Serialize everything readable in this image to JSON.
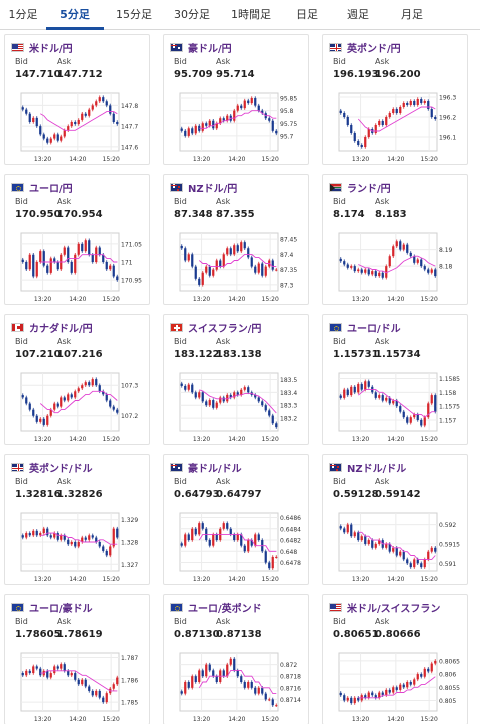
{
  "tabs": [
    {
      "label": "1分足",
      "active": false
    },
    {
      "label": "5分足",
      "active": true
    },
    {
      "label": "15分足",
      "active": false
    },
    {
      "label": "30分足",
      "active": false
    },
    {
      "label": "1時間足",
      "active": false
    },
    {
      "label": "日足",
      "active": false
    },
    {
      "label": "週足",
      "active": false
    },
    {
      "label": "月足",
      "active": false
    }
  ],
  "bid_label": "Bid",
  "ask_label": "Ask",
  "x_ticks": [
    "13:20",
    "14:20",
    "15:20"
  ],
  "colors": {
    "up": "#d7262c",
    "down": "#1a3a8f",
    "ma": "#e040d0",
    "accent": "#1a4fa0",
    "pair": "#5b2a86"
  },
  "cards": [
    {
      "pair": "米ドル/円",
      "flag": "us",
      "bid": "147.710",
      "ask": "147.712",
      "y_ticks": [
        "147.8",
        "147.7",
        "147.6"
      ],
      "ylim": [
        147.58,
        147.86
      ],
      "closes": [
        147.78,
        147.76,
        147.72,
        147.74,
        147.7,
        147.66,
        147.64,
        147.62,
        147.64,
        147.66,
        147.63,
        147.65,
        147.68,
        147.7,
        147.72,
        147.71,
        147.73,
        147.76,
        147.75,
        147.78,
        147.8,
        147.82,
        147.84,
        147.82,
        147.8,
        147.76,
        147.72,
        147.71
      ],
      "ma": [
        147.76,
        147.75,
        147.73,
        147.72,
        147.71,
        147.7,
        147.69,
        147.68,
        147.68,
        147.68,
        147.68,
        147.69,
        147.7,
        147.71,
        147.72,
        147.73,
        147.74,
        147.75,
        147.76,
        147.77,
        147.77,
        147.77,
        147.76
      ]
    },
    {
      "pair": "豪ドル/円",
      "flag": "au",
      "bid": "95.709",
      "ask": "95.714",
      "y_ticks": [
        "95.85",
        "95.8",
        "95.75",
        "95.7"
      ],
      "ylim": [
        95.64,
        95.87
      ],
      "closes": [
        95.72,
        95.7,
        95.73,
        95.71,
        95.74,
        95.72,
        95.75,
        95.74,
        95.76,
        95.73,
        95.75,
        95.77,
        95.76,
        95.78,
        95.76,
        95.8,
        95.82,
        95.81,
        95.84,
        95.83,
        95.85,
        95.82,
        95.8,
        95.79,
        95.77,
        95.76,
        95.72,
        95.71
      ],
      "ma": [
        95.73,
        95.73,
        95.73,
        95.74,
        95.74,
        95.75,
        95.75,
        95.76,
        95.76,
        95.77,
        95.77,
        95.78,
        95.78,
        95.79,
        95.79,
        95.8,
        95.8,
        95.8,
        95.79,
        95.78,
        95.78,
        95.77,
        95.77
      ]
    },
    {
      "pair": "英ポンド/円",
      "flag": "gb",
      "bid": "196.193",
      "ask": "196.200",
      "y_ticks": [
        "196.3",
        "196.2",
        "196.1"
      ],
      "ylim": [
        196.03,
        196.32
      ],
      "closes": [
        196.22,
        196.2,
        196.16,
        196.12,
        196.08,
        196.06,
        196.05,
        196.1,
        196.14,
        196.12,
        196.16,
        196.18,
        196.16,
        196.2,
        196.22,
        196.24,
        196.22,
        196.25,
        196.27,
        196.26,
        196.28,
        196.26,
        196.29,
        196.27,
        196.28,
        196.24,
        196.2,
        196.19
      ],
      "ma": [
        196.19,
        196.17,
        196.15,
        196.14,
        196.13,
        196.13,
        196.13,
        196.14,
        196.15,
        196.16,
        196.17,
        196.18,
        196.19,
        196.2,
        196.21,
        196.22,
        196.23,
        196.24,
        196.25,
        196.25,
        196.25,
        196.25,
        196.24
      ]
    },
    {
      "pair": "ユーロ/円",
      "flag": "eu",
      "bid": "170.950",
      "ask": "170.954",
      "y_ticks": [
        "171.05",
        "171",
        "170.95"
      ],
      "ylim": [
        170.92,
        171.08
      ],
      "closes": [
        171.0,
        170.98,
        171.02,
        170.96,
        171.0,
        171.03,
        170.99,
        170.97,
        171.01,
        171.0,
        170.98,
        171.02,
        171.04,
        171.0,
        170.97,
        171.02,
        171.05,
        171.03,
        171.06,
        171.02,
        171.0,
        171.04,
        171.02,
        171.0,
        170.98,
        170.99,
        170.96,
        170.95
      ],
      "ma": [
        171.0,
        171.0,
        171.0,
        171.0,
        171.0,
        171.0,
        171.0,
        171.0,
        171.01,
        171.01,
        171.01,
        171.01,
        171.02,
        171.02,
        171.02,
        171.02,
        171.02,
        171.02,
        171.02,
        171.01,
        171.01,
        171.0,
        171.0
      ]
    },
    {
      "pair": "NZドル/円",
      "flag": "nz",
      "bid": "87.348",
      "ask": "87.355",
      "y_ticks": [
        "87.45",
        "87.4",
        "87.35",
        "87.3"
      ],
      "ylim": [
        87.28,
        87.47
      ],
      "closes": [
        87.42,
        87.38,
        87.4,
        87.36,
        87.32,
        87.3,
        87.34,
        87.36,
        87.33,
        87.35,
        87.38,
        87.36,
        87.4,
        87.42,
        87.4,
        87.43,
        87.41,
        87.44,
        87.42,
        87.39,
        87.36,
        87.34,
        87.37,
        87.33,
        87.36,
        87.38,
        87.35,
        87.35
      ],
      "ma": [
        87.38,
        87.37,
        87.37,
        87.36,
        87.36,
        87.36,
        87.36,
        87.36,
        87.37,
        87.37,
        87.38,
        87.38,
        87.39,
        87.4,
        87.4,
        87.4,
        87.39,
        87.39,
        87.38,
        87.37,
        87.37,
        87.36,
        87.36
      ]
    },
    {
      "pair": "ランド/円",
      "flag": "za",
      "bid": "8.174",
      "ask": "8.183",
      "y_ticks": [
        "8.19",
        "8.18"
      ],
      "ylim": [
        8.165,
        8.2
      ],
      "closes": [
        8.183,
        8.181,
        8.179,
        8.18,
        8.177,
        8.178,
        8.176,
        8.178,
        8.175,
        8.177,
        8.174,
        8.176,
        8.173,
        8.18,
        8.186,
        8.192,
        8.195,
        8.19,
        8.193,
        8.188,
        8.186,
        8.182,
        8.184,
        8.18,
        8.178,
        8.176,
        8.178,
        8.174
      ],
      "ma": [
        8.181,
        8.18,
        8.179,
        8.179,
        8.178,
        8.178,
        8.177,
        8.177,
        8.176,
        8.177,
        8.178,
        8.179,
        8.181,
        8.183,
        8.184,
        8.185,
        8.186,
        8.186,
        8.185,
        8.184,
        8.182,
        8.181,
        8.18
      ]
    },
    {
      "pair": "カナダドル/円",
      "flag": "ca",
      "bid": "107.210",
      "ask": "107.216",
      "y_ticks": [
        "107.3",
        "107.2"
      ],
      "ylim": [
        107.15,
        107.34
      ],
      "closes": [
        107.26,
        107.24,
        107.22,
        107.2,
        107.18,
        107.19,
        107.17,
        107.2,
        107.22,
        107.24,
        107.23,
        107.26,
        107.25,
        107.27,
        107.26,
        107.28,
        107.29,
        107.3,
        107.31,
        107.3,
        107.32,
        107.3,
        107.28,
        107.27,
        107.25,
        107.23,
        107.22,
        107.21
      ],
      "ma": [
        107.24,
        107.23,
        107.22,
        107.22,
        107.21,
        107.21,
        107.22,
        107.22,
        107.23,
        107.24,
        107.25,
        107.25,
        107.26,
        107.27,
        107.27,
        107.28,
        107.28,
        107.28,
        107.28,
        107.27,
        107.27,
        107.26,
        107.25
      ]
    },
    {
      "pair": "スイスフラン/円",
      "flag": "ch",
      "bid": "183.122",
      "ask": "183.138",
      "y_ticks": [
        "183.5",
        "183.4",
        "183.3",
        "183.2"
      ],
      "ylim": [
        183.1,
        183.55
      ],
      "closes": [
        183.45,
        183.42,
        183.46,
        183.4,
        183.36,
        183.4,
        183.33,
        183.3,
        183.34,
        183.28,
        183.32,
        183.36,
        183.33,
        183.38,
        183.36,
        183.4,
        183.38,
        183.42,
        183.44,
        183.4,
        183.38,
        183.36,
        183.33,
        183.3,
        183.26,
        183.22,
        183.16,
        183.13
      ],
      "ma": [
        183.42,
        183.41,
        183.39,
        183.37,
        183.36,
        183.35,
        183.35,
        183.35,
        183.35,
        183.36,
        183.37,
        183.38,
        183.38,
        183.39,
        183.39,
        183.39,
        183.38,
        183.37,
        183.35,
        183.33,
        183.3,
        183.27,
        183.24
      ]
    },
    {
      "pair": "ユーロ/ドル",
      "flag": "eu-us",
      "bid": "1.15731",
      "ask": "1.15734",
      "y_ticks": [
        "1.1585",
        "1.158",
        "1.1575",
        "1.157"
      ],
      "ylim": [
        1.1566,
        1.1587
      ],
      "closes": [
        1.1578,
        1.1581,
        1.1579,
        1.1582,
        1.158,
        1.1583,
        1.1581,
        1.1584,
        1.1582,
        1.158,
        1.1578,
        1.1579,
        1.1577,
        1.1578,
        1.1576,
        1.1577,
        1.1575,
        1.1573,
        1.1571,
        1.1569,
        1.1571,
        1.1572,
        1.157,
        1.1568,
        1.1571,
        1.1576,
        1.1579,
        1.1573
      ],
      "ma": [
        1.1579,
        1.158,
        1.1581,
        1.1581,
        1.1581,
        1.1581,
        1.158,
        1.158,
        1.1579,
        1.1578,
        1.1577,
        1.1577,
        1.1576,
        1.1575,
        1.1574,
        1.1573,
        1.1572,
        1.1572,
        1.1572,
        1.1571,
        1.1572,
        1.1573,
        1.1573
      ]
    },
    {
      "pair": "英ポンド/ドル",
      "flag": "gb-us",
      "bid": "1.32816",
      "ask": "1.32826",
      "y_ticks": [
        "1.329",
        "1.328",
        "1.327"
      ],
      "ylim": [
        1.3267,
        1.3293
      ],
      "closes": [
        1.3282,
        1.3284,
        1.3283,
        1.3285,
        1.3283,
        1.3284,
        1.3286,
        1.3283,
        1.3282,
        1.3284,
        1.3281,
        1.3283,
        1.3281,
        1.3279,
        1.328,
        1.3278,
        1.328,
        1.3282,
        1.3281,
        1.3283,
        1.3282,
        1.328,
        1.3278,
        1.3276,
        1.3274,
        1.3278,
        1.3286,
        1.3282
      ],
      "ma": [
        1.3283,
        1.3283,
        1.3284,
        1.3284,
        1.3284,
        1.3283,
        1.3283,
        1.3283,
        1.3282,
        1.3282,
        1.3281,
        1.3281,
        1.328,
        1.328,
        1.328,
        1.328,
        1.328,
        1.3281,
        1.3281,
        1.328,
        1.3279,
        1.3279,
        1.3279
      ]
    },
    {
      "pair": "豪ドル/ドル",
      "flag": "au-us",
      "bid": "0.64793",
      "ask": "0.64797",
      "y_ticks": [
        "0.6486",
        "0.6484",
        "0.6482",
        "0.648",
        "0.6478"
      ],
      "ylim": [
        0.64765,
        0.64868
      ],
      "closes": [
        0.6481,
        0.6483,
        0.6482,
        0.6484,
        0.6483,
        0.6485,
        0.6484,
        0.6482,
        0.6481,
        0.6483,
        0.6482,
        0.6484,
        0.6485,
        0.6484,
        0.6483,
        0.6482,
        0.6483,
        0.6481,
        0.648,
        0.6482,
        0.6481,
        0.6483,
        0.6482,
        0.648,
        0.6478,
        0.6477,
        0.6479,
        0.6479
      ],
      "ma": [
        0.6482,
        0.6483,
        0.6483,
        0.6483,
        0.6483,
        0.6483,
        0.6483,
        0.6483,
        0.6483,
        0.6483,
        0.6483,
        0.6483,
        0.6483,
        0.6482,
        0.6482,
        0.6482,
        0.6481,
        0.6481,
        0.6481,
        0.6481,
        0.648,
        0.648,
        0.648
      ]
    },
    {
      "pair": "NZドル/ドル",
      "flag": "nz-us",
      "bid": "0.59128",
      "ask": "0.59142",
      "y_ticks": [
        "0.592",
        "0.5915",
        "0.591"
      ],
      "ylim": [
        0.5908,
        0.5923
      ],
      "closes": [
        0.5919,
        0.5918,
        0.592,
        0.5917,
        0.5918,
        0.5916,
        0.5917,
        0.5915,
        0.5916,
        0.5914,
        0.5915,
        0.5916,
        0.5914,
        0.5915,
        0.5913,
        0.5914,
        0.5912,
        0.5913,
        0.5911,
        0.591,
        0.5909,
        0.5911,
        0.591,
        0.5909,
        0.5911,
        0.5913,
        0.5914,
        0.5913
      ],
      "ma": [
        0.5918,
        0.5918,
        0.5917,
        0.5917,
        0.5916,
        0.5916,
        0.5916,
        0.5915,
        0.5915,
        0.5915,
        0.5914,
        0.5914,
        0.5914,
        0.5913,
        0.5913,
        0.5912,
        0.5912,
        0.5911,
        0.5911,
        0.5911,
        0.5911,
        0.5911,
        0.5912
      ]
    },
    {
      "pair": "ユーロ/豪ドル",
      "flag": "eu-au",
      "bid": "1.78605",
      "ask": "1.78619",
      "y_ticks": [
        "1.787",
        "1.786",
        "1.785"
      ],
      "ylim": [
        1.7846,
        1.7872
      ],
      "closes": [
        1.7862,
        1.7864,
        1.7863,
        1.7866,
        1.7865,
        1.7862,
        1.7864,
        1.7861,
        1.7863,
        1.7866,
        1.7865,
        1.7867,
        1.7864,
        1.7862,
        1.7863,
        1.786,
        1.7858,
        1.786,
        1.7857,
        1.7855,
        1.7853,
        1.7855,
        1.7852,
        1.785,
        1.7854,
        1.7856,
        1.7858,
        1.7861
      ],
      "ma": [
        1.7863,
        1.7863,
        1.7864,
        1.7864,
        1.7864,
        1.7864,
        1.7864,
        1.7864,
        1.7864,
        1.7864,
        1.7864,
        1.7863,
        1.7862,
        1.7862,
        1.7861,
        1.786,
        1.7859,
        1.7858,
        1.7857,
        1.7856,
        1.7855,
        1.7855,
        1.7855
      ]
    },
    {
      "pair": "ユーロ/英ポンド",
      "flag": "eu-gb",
      "bid": "0.87130",
      "ask": "0.87138",
      "y_ticks": [
        "0.872",
        "0.8718",
        "0.8716",
        "0.8714"
      ],
      "ylim": [
        0.8712,
        0.8722
      ],
      "closes": [
        0.8715,
        0.8717,
        0.8716,
        0.8718,
        0.8717,
        0.8719,
        0.8718,
        0.872,
        0.8719,
        0.8718,
        0.8717,
        0.8719,
        0.8718,
        0.872,
        0.8721,
        0.8719,
        0.8718,
        0.8717,
        0.8716,
        0.8717,
        0.8716,
        0.8715,
        0.8716,
        0.8715,
        0.8714,
        0.8714,
        0.8713,
        0.8713
      ],
      "ma": [
        0.8716,
        0.8717,
        0.8717,
        0.8718,
        0.8718,
        0.8718,
        0.8718,
        0.8718,
        0.8718,
        0.8719,
        0.8719,
        0.8719,
        0.8719,
        0.8718,
        0.8718,
        0.8718,
        0.8717,
        0.8717,
        0.8716,
        0.8716,
        0.8716,
        0.8715,
        0.8715
      ]
    },
    {
      "pair": "米ドル/スイスフラン",
      "flag": "us-ch",
      "bid": "0.80651",
      "ask": "0.80666",
      "y_ticks": [
        "0.8065",
        "0.806",
        "0.8055",
        "0.805"
      ],
      "ylim": [
        0.8046,
        0.8068
      ],
      "closes": [
        0.8052,
        0.805,
        0.8051,
        0.8049,
        0.8051,
        0.805,
        0.8052,
        0.8051,
        0.8053,
        0.8052,
        0.8051,
        0.8053,
        0.8052,
        0.8054,
        0.8053,
        0.8055,
        0.8054,
        0.8056,
        0.8055,
        0.8057,
        0.8056,
        0.8058,
        0.806,
        0.8059,
        0.8062,
        0.8061,
        0.8064,
        0.8065
      ],
      "ma": [
        0.8051,
        0.8051,
        0.8051,
        0.8051,
        0.8051,
        0.8051,
        0.8051,
        0.8052,
        0.8052,
        0.8052,
        0.8052,
        0.8053,
        0.8053,
        0.8053,
        0.8054,
        0.8054,
        0.8055,
        0.8055,
        0.8056,
        0.8056,
        0.8057,
        0.8058,
        0.8059
      ]
    }
  ]
}
